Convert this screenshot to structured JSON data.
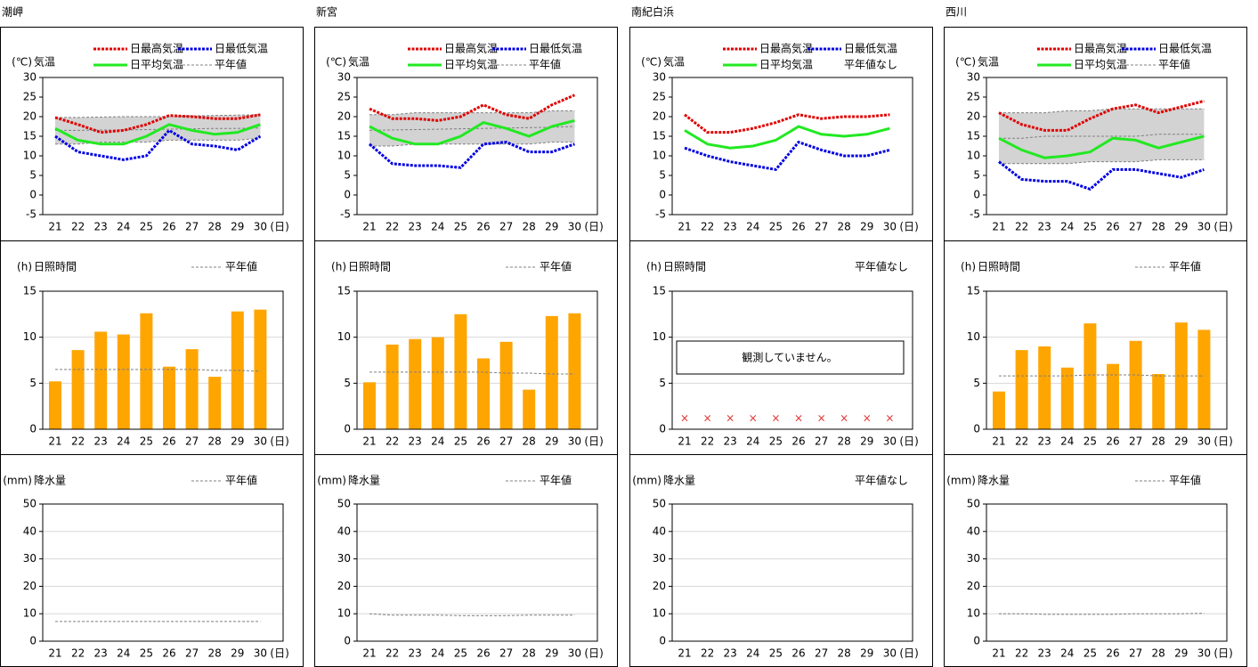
{
  "stations": [
    "潮岬",
    "新宮",
    "南紀白浜",
    "西川"
  ],
  "chart_data": [
    {
      "type": "line",
      "unit": "(℃)",
      "title": "気温",
      "x_unit": "(日)",
      "categories": [
        "21",
        "22",
        "23",
        "24",
        "25",
        "26",
        "27",
        "28",
        "29",
        "30"
      ],
      "ylim": [
        -5,
        30
      ],
      "yticks": [
        -5,
        0,
        5,
        10,
        15,
        20,
        25,
        30
      ],
      "series": [
        {
          "name": "日最高気温",
          "color": "#e00000",
          "style": "dotted",
          "values": [
            19.8,
            18,
            16,
            16.5,
            18,
            20.3,
            20,
            19.5,
            19.5,
            20.5
          ]
        },
        {
          "name": "日最低気温",
          "color": "#0000e0",
          "style": "dotted",
          "values": [
            15,
            11,
            10,
            9,
            10,
            16.5,
            13,
            12.5,
            11.5,
            15
          ]
        },
        {
          "name": "日平均気温",
          "color": "#22e822",
          "style": "solid",
          "values": [
            17,
            14,
            13,
            13,
            15,
            18,
            16.5,
            15.5,
            16,
            18
          ]
        }
      ],
      "normal": {
        "name": "平年値",
        "color": "#808080",
        "max": [
          19.8,
          19.8,
          19.9,
          20,
          20,
          20,
          20.2,
          20.3,
          20.4,
          20.5
        ],
        "mean": [
          16.5,
          16.5,
          16.6,
          16.6,
          16.7,
          16.8,
          16.9,
          17,
          17,
          17.1
        ],
        "min": [
          13,
          13,
          13.5,
          13.5,
          13.5,
          14,
          14,
          14,
          14,
          14.5
        ]
      }
    },
    {
      "type": "bar",
      "unit": "(h)",
      "title": "日照時間",
      "x_unit": "(日)",
      "categories": [
        "21",
        "22",
        "23",
        "24",
        "25",
        "26",
        "27",
        "28",
        "29",
        "30"
      ],
      "ylim": [
        0,
        15
      ],
      "yticks": [
        0,
        5,
        10,
        15
      ],
      "grid": true,
      "color": "#ffa500",
      "values": [
        5.2,
        8.6,
        10.6,
        10.3,
        12.6,
        6.8,
        8.7,
        5.7,
        12.8,
        13.0
      ],
      "normal": {
        "name": "平年値",
        "color": "#808080",
        "values": [
          6.5,
          6.5,
          6.5,
          6.5,
          6.5,
          6.5,
          6.5,
          6.4,
          6.4,
          6.3
        ]
      }
    },
    {
      "type": "bar",
      "unit": "(mm)",
      "title": "降水量",
      "x_unit": "(日)",
      "categories": [
        "21",
        "22",
        "23",
        "24",
        "25",
        "26",
        "27",
        "28",
        "29",
        "30"
      ],
      "ylim": [
        0,
        50
      ],
      "yticks": [
        0,
        10,
        20,
        30,
        40,
        50
      ],
      "grid": true,
      "color": "#3060e0",
      "values": [
        0,
        0,
        0,
        0,
        0,
        0,
        0,
        0,
        0,
        0
      ],
      "normal": {
        "name": "平年値",
        "color": "#808080",
        "values": [
          7.2,
          7.2,
          7.2,
          7.2,
          7.2,
          7.2,
          7.2,
          7.2,
          7.2,
          7.2
        ]
      }
    },
    {
      "type": "line",
      "unit": "(℃)",
      "title": "気温",
      "x_unit": "(日)",
      "categories": [
        "21",
        "22",
        "23",
        "24",
        "25",
        "26",
        "27",
        "28",
        "29",
        "30"
      ],
      "ylim": [
        -5,
        30
      ],
      "yticks": [
        -5,
        0,
        5,
        10,
        15,
        20,
        25,
        30
      ],
      "series": [
        {
          "name": "日最高気温",
          "color": "#e00000",
          "style": "dotted",
          "values": [
            22,
            19.5,
            19.5,
            19,
            20,
            23,
            20.5,
            19.5,
            23,
            25.5
          ]
        },
        {
          "name": "日最低気温",
          "color": "#0000e0",
          "style": "dotted",
          "values": [
            13,
            8,
            7.5,
            7.5,
            7,
            13,
            13.5,
            11,
            11,
            13
          ]
        },
        {
          "name": "日平均気温",
          "color": "#22e822",
          "style": "solid",
          "values": [
            17.5,
            14.5,
            13,
            13,
            15,
            18.5,
            17,
            15,
            17.5,
            19
          ]
        }
      ],
      "normal": {
        "name": "平年値",
        "color": "#808080",
        "max": [
          20.5,
          20.5,
          21,
          21,
          21,
          21,
          21,
          21,
          21.5,
          21.5
        ],
        "mean": [
          16.5,
          16.6,
          16.7,
          16.8,
          16.9,
          17,
          17.1,
          17.2,
          17.3,
          17.5
        ],
        "min": [
          12.5,
          12.5,
          13,
          13,
          13,
          13,
          13,
          13,
          13.5,
          13.5
        ]
      }
    },
    {
      "type": "bar",
      "unit": "(h)",
      "title": "日照時間",
      "x_unit": "(日)",
      "categories": [
        "21",
        "22",
        "23",
        "24",
        "25",
        "26",
        "27",
        "28",
        "29",
        "30"
      ],
      "ylim": [
        0,
        15
      ],
      "yticks": [
        0,
        5,
        10,
        15
      ],
      "grid": true,
      "color": "#ffa500",
      "values": [
        5.1,
        9.2,
        9.8,
        10.0,
        12.5,
        7.7,
        9.5,
        4.3,
        12.3,
        12.6
      ],
      "normal": {
        "name": "平年値",
        "color": "#808080",
        "values": [
          6.2,
          6.2,
          6.2,
          6.2,
          6.2,
          6.2,
          6.1,
          6.1,
          6.0,
          6.0
        ]
      }
    },
    {
      "type": "bar",
      "unit": "(mm)",
      "title": "降水量",
      "x_unit": "(日)",
      "categories": [
        "21",
        "22",
        "23",
        "24",
        "25",
        "26",
        "27",
        "28",
        "29",
        "30"
      ],
      "ylim": [
        0,
        50
      ],
      "yticks": [
        0,
        10,
        20,
        30,
        40,
        50
      ],
      "grid": true,
      "color": "#3060e0",
      "values": [
        0,
        0,
        0,
        0,
        0,
        0,
        0,
        0,
        0,
        0
      ],
      "normal": {
        "name": "平年値",
        "color": "#808080",
        "values": [
          10,
          9.5,
          9.5,
          9.5,
          9.3,
          9.3,
          9.3,
          9.5,
          9.5,
          9.5
        ]
      }
    },
    {
      "type": "line",
      "unit": "(℃)",
      "title": "気温",
      "x_unit": "(日)",
      "categories": [
        "21",
        "22",
        "23",
        "24",
        "25",
        "26",
        "27",
        "28",
        "29",
        "30"
      ],
      "ylim": [
        -5,
        30
      ],
      "yticks": [
        -5,
        0,
        5,
        10,
        15,
        20,
        25,
        30
      ],
      "series": [
        {
          "name": "日最高気温",
          "color": "#e00000",
          "style": "dotted",
          "values": [
            20.5,
            16,
            16,
            17,
            18.5,
            20.5,
            19.5,
            20,
            20,
            20.5
          ]
        },
        {
          "name": "日最低気温",
          "color": "#0000e0",
          "style": "dotted",
          "values": [
            12,
            10,
            8.5,
            7.5,
            6.5,
            13.5,
            11.5,
            10,
            10,
            11.5
          ]
        },
        {
          "name": "日平均気温",
          "color": "#22e822",
          "style": "solid",
          "values": [
            16.5,
            13,
            12,
            12.5,
            14,
            17.5,
            15.5,
            15,
            15.5,
            17
          ]
        }
      ],
      "normal": {
        "name": "平年値なし"
      }
    },
    {
      "type": "bar",
      "unit": "(h)",
      "title": "日照時間",
      "x_unit": "(日)",
      "categories": [
        "21",
        "22",
        "23",
        "24",
        "25",
        "26",
        "27",
        "28",
        "29",
        "30"
      ],
      "ylim": [
        0,
        15
      ],
      "yticks": [
        0,
        5,
        10,
        15
      ],
      "grid": true,
      "color": "#ffa500",
      "values": [
        null,
        null,
        null,
        null,
        null,
        null,
        null,
        null,
        null,
        null
      ],
      "missing_mark": "×",
      "note": "観測していません。",
      "normal": {
        "name": "平年値なし"
      }
    },
    {
      "type": "bar",
      "unit": "(mm)",
      "title": "降水量",
      "x_unit": "(日)",
      "categories": [
        "21",
        "22",
        "23",
        "24",
        "25",
        "26",
        "27",
        "28",
        "29",
        "30"
      ],
      "ylim": [
        0,
        50
      ],
      "yticks": [
        0,
        10,
        20,
        30,
        40,
        50
      ],
      "grid": true,
      "color": "#3060e0",
      "values": [
        0,
        0,
        0,
        0,
        0,
        0,
        0,
        0,
        0,
        0
      ],
      "normal": {
        "name": "平年値なし"
      }
    },
    {
      "type": "line",
      "unit": "(℃)",
      "title": "気温",
      "x_unit": "(日)",
      "categories": [
        "21",
        "22",
        "23",
        "24",
        "25",
        "26",
        "27",
        "28",
        "29",
        "30"
      ],
      "ylim": [
        -5,
        30
      ],
      "yticks": [
        -5,
        0,
        5,
        10,
        15,
        20,
        25,
        30
      ],
      "series": [
        {
          "name": "日最高気温",
          "color": "#e00000",
          "style": "dotted",
          "values": [
            21,
            18,
            16.5,
            16.5,
            19.5,
            22,
            23,
            21,
            22.5,
            24
          ]
        },
        {
          "name": "日最低気温",
          "color": "#0000e0",
          "style": "dotted",
          "values": [
            8.5,
            4,
            3.5,
            3.5,
            1.5,
            6.5,
            6.5,
            5.5,
            4.5,
            6.5
          ]
        },
        {
          "name": "日平均気温",
          "color": "#22e822",
          "style": "solid",
          "values": [
            14.5,
            11.5,
            9.5,
            10,
            11,
            14.5,
            14,
            12,
            13.5,
            15
          ]
        }
      ],
      "normal": {
        "name": "平年値",
        "color": "#808080",
        "max": [
          21,
          21,
          21,
          21.5,
          21.5,
          22,
          22,
          22,
          22,
          22
        ],
        "mean": [
          14.5,
          14.5,
          15,
          15,
          15,
          15,
          15,
          15.5,
          15.5,
          15.5
        ],
        "min": [
          8,
          8,
          8,
          8,
          8.5,
          8.5,
          8.5,
          9,
          9,
          9
        ]
      }
    },
    {
      "type": "bar",
      "unit": "(h)",
      "title": "日照時間",
      "x_unit": "(日)",
      "categories": [
        "21",
        "22",
        "23",
        "24",
        "25",
        "26",
        "27",
        "28",
        "29",
        "30"
      ],
      "ylim": [
        0,
        15
      ],
      "yticks": [
        0,
        5,
        10,
        15
      ],
      "grid": true,
      "color": "#ffa500",
      "values": [
        4.1,
        8.6,
        9.0,
        6.7,
        11.5,
        7.1,
        9.6,
        6.0,
        11.6,
        10.8
      ],
      "normal": {
        "name": "平年値",
        "color": "#808080",
        "values": [
          5.8,
          5.8,
          5.8,
          5.8,
          5.9,
          5.9,
          5.9,
          5.8,
          5.8,
          5.8
        ]
      }
    },
    {
      "type": "bar",
      "unit": "(mm)",
      "title": "降水量",
      "x_unit": "(日)",
      "categories": [
        "21",
        "22",
        "23",
        "24",
        "25",
        "26",
        "27",
        "28",
        "29",
        "30"
      ],
      "ylim": [
        0,
        50
      ],
      "yticks": [
        0,
        10,
        20,
        30,
        40,
        50
      ],
      "grid": true,
      "color": "#3060e0",
      "values": [
        0,
        0,
        0,
        0,
        0,
        0,
        0,
        0,
        0,
        0
      ],
      "normal": {
        "name": "平年値",
        "color": "#808080",
        "values": [
          10,
          10,
          9.8,
          9.8,
          9.8,
          9.8,
          10,
          10,
          10,
          10.2
        ]
      }
    }
  ]
}
